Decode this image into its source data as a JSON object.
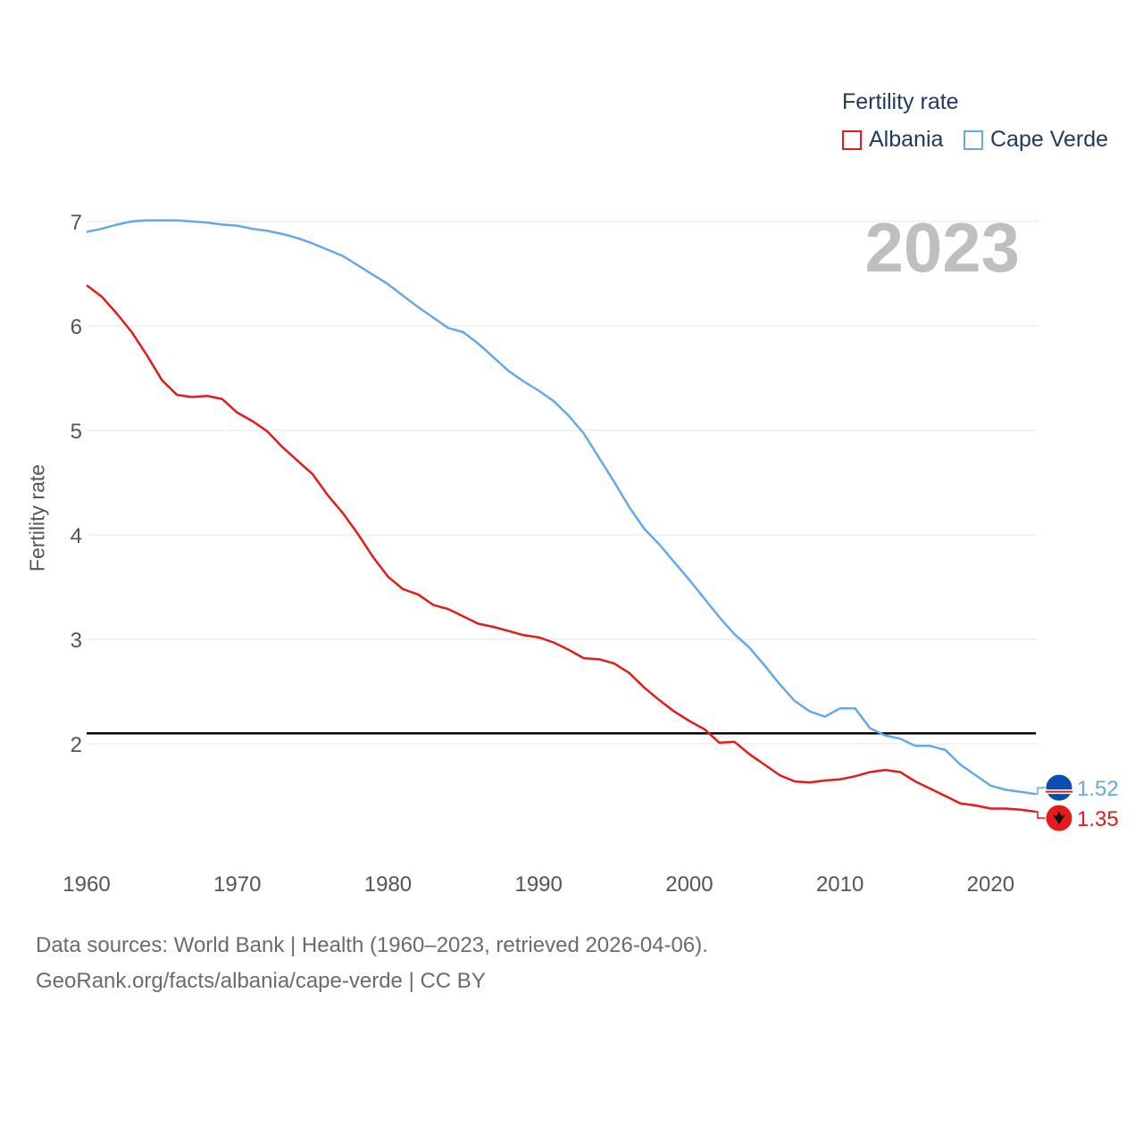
{
  "legend": {
    "title": "Fertility rate",
    "items": [
      {
        "label": "Albania",
        "color": "#e41a1c"
      },
      {
        "label": "Cape Verde",
        "color": "#65a9e6"
      }
    ]
  },
  "year_label": "2023",
  "footer": {
    "line1": "Data sources: World Bank | Health (1960–2023, retrieved 2026-04-06).",
    "line2": "GeoRank.org/facts/albania/cape-verde | CC BY"
  },
  "chart_data": {
    "type": "line",
    "title": "Fertility rate",
    "xlabel": "",
    "ylabel": "Fertility rate",
    "xlim": [
      1960,
      2023
    ],
    "ylim": [
      1,
      7
    ],
    "xticks": [
      1960,
      1970,
      1980,
      1990,
      2000,
      2010,
      2020
    ],
    "yticks": [
      2,
      3,
      4,
      5,
      6,
      7
    ],
    "reference_line": 2.1,
    "x": [
      1960,
      1961,
      1962,
      1963,
      1964,
      1965,
      1966,
      1967,
      1968,
      1969,
      1970,
      1971,
      1972,
      1973,
      1974,
      1975,
      1976,
      1977,
      1978,
      1979,
      1980,
      1981,
      1982,
      1983,
      1984,
      1985,
      1986,
      1987,
      1988,
      1989,
      1990,
      1991,
      1992,
      1993,
      1994,
      1995,
      1996,
      1997,
      1998,
      1999,
      2000,
      2001,
      2002,
      2003,
      2004,
      2005,
      2006,
      2007,
      2008,
      2009,
      2010,
      2011,
      2012,
      2013,
      2014,
      2015,
      2016,
      2017,
      2018,
      2019,
      2020,
      2021,
      2022,
      2023
    ],
    "series": [
      {
        "name": "Albania",
        "color": "#e41a1c",
        "end_label": "1.35",
        "values": [
          6.39,
          6.28,
          6.12,
          5.94,
          5.72,
          5.48,
          5.34,
          5.32,
          5.33,
          5.3,
          5.17,
          5.09,
          4.99,
          4.84,
          4.71,
          4.58,
          4.38,
          4.21,
          4.01,
          3.79,
          3.6,
          3.48,
          3.43,
          3.33,
          3.29,
          3.22,
          3.15,
          3.12,
          3.08,
          3.04,
          3.02,
          2.97,
          2.9,
          2.82,
          2.81,
          2.77,
          2.68,
          2.54,
          2.42,
          2.31,
          2.22,
          2.14,
          2.01,
          2.02,
          1.9,
          1.8,
          1.7,
          1.64,
          1.63,
          1.65,
          1.66,
          1.69,
          1.73,
          1.75,
          1.73,
          1.64,
          1.57,
          1.5,
          1.43,
          1.41,
          1.38,
          1.38,
          1.37,
          1.35
        ]
      },
      {
        "name": "Cape Verde",
        "color": "#65a9e6",
        "end_label": "1.52",
        "values": [
          6.9,
          6.93,
          6.97,
          7.0,
          7.01,
          7.01,
          7.01,
          7.0,
          6.99,
          6.97,
          6.96,
          6.93,
          6.91,
          6.88,
          6.84,
          6.79,
          6.73,
          6.67,
          6.58,
          6.49,
          6.4,
          6.29,
          6.18,
          6.08,
          5.98,
          5.94,
          5.83,
          5.7,
          5.57,
          5.47,
          5.38,
          5.28,
          5.14,
          4.97,
          4.74,
          4.51,
          4.27,
          4.06,
          3.91,
          3.74,
          3.57,
          3.39,
          3.21,
          3.05,
          2.92,
          2.75,
          2.57,
          2.41,
          2.31,
          2.26,
          2.34,
          2.34,
          2.15,
          2.08,
          2.05,
          1.98,
          1.98,
          1.94,
          1.8,
          1.7,
          1.6,
          1.56,
          1.54,
          1.52
        ]
      }
    ]
  }
}
